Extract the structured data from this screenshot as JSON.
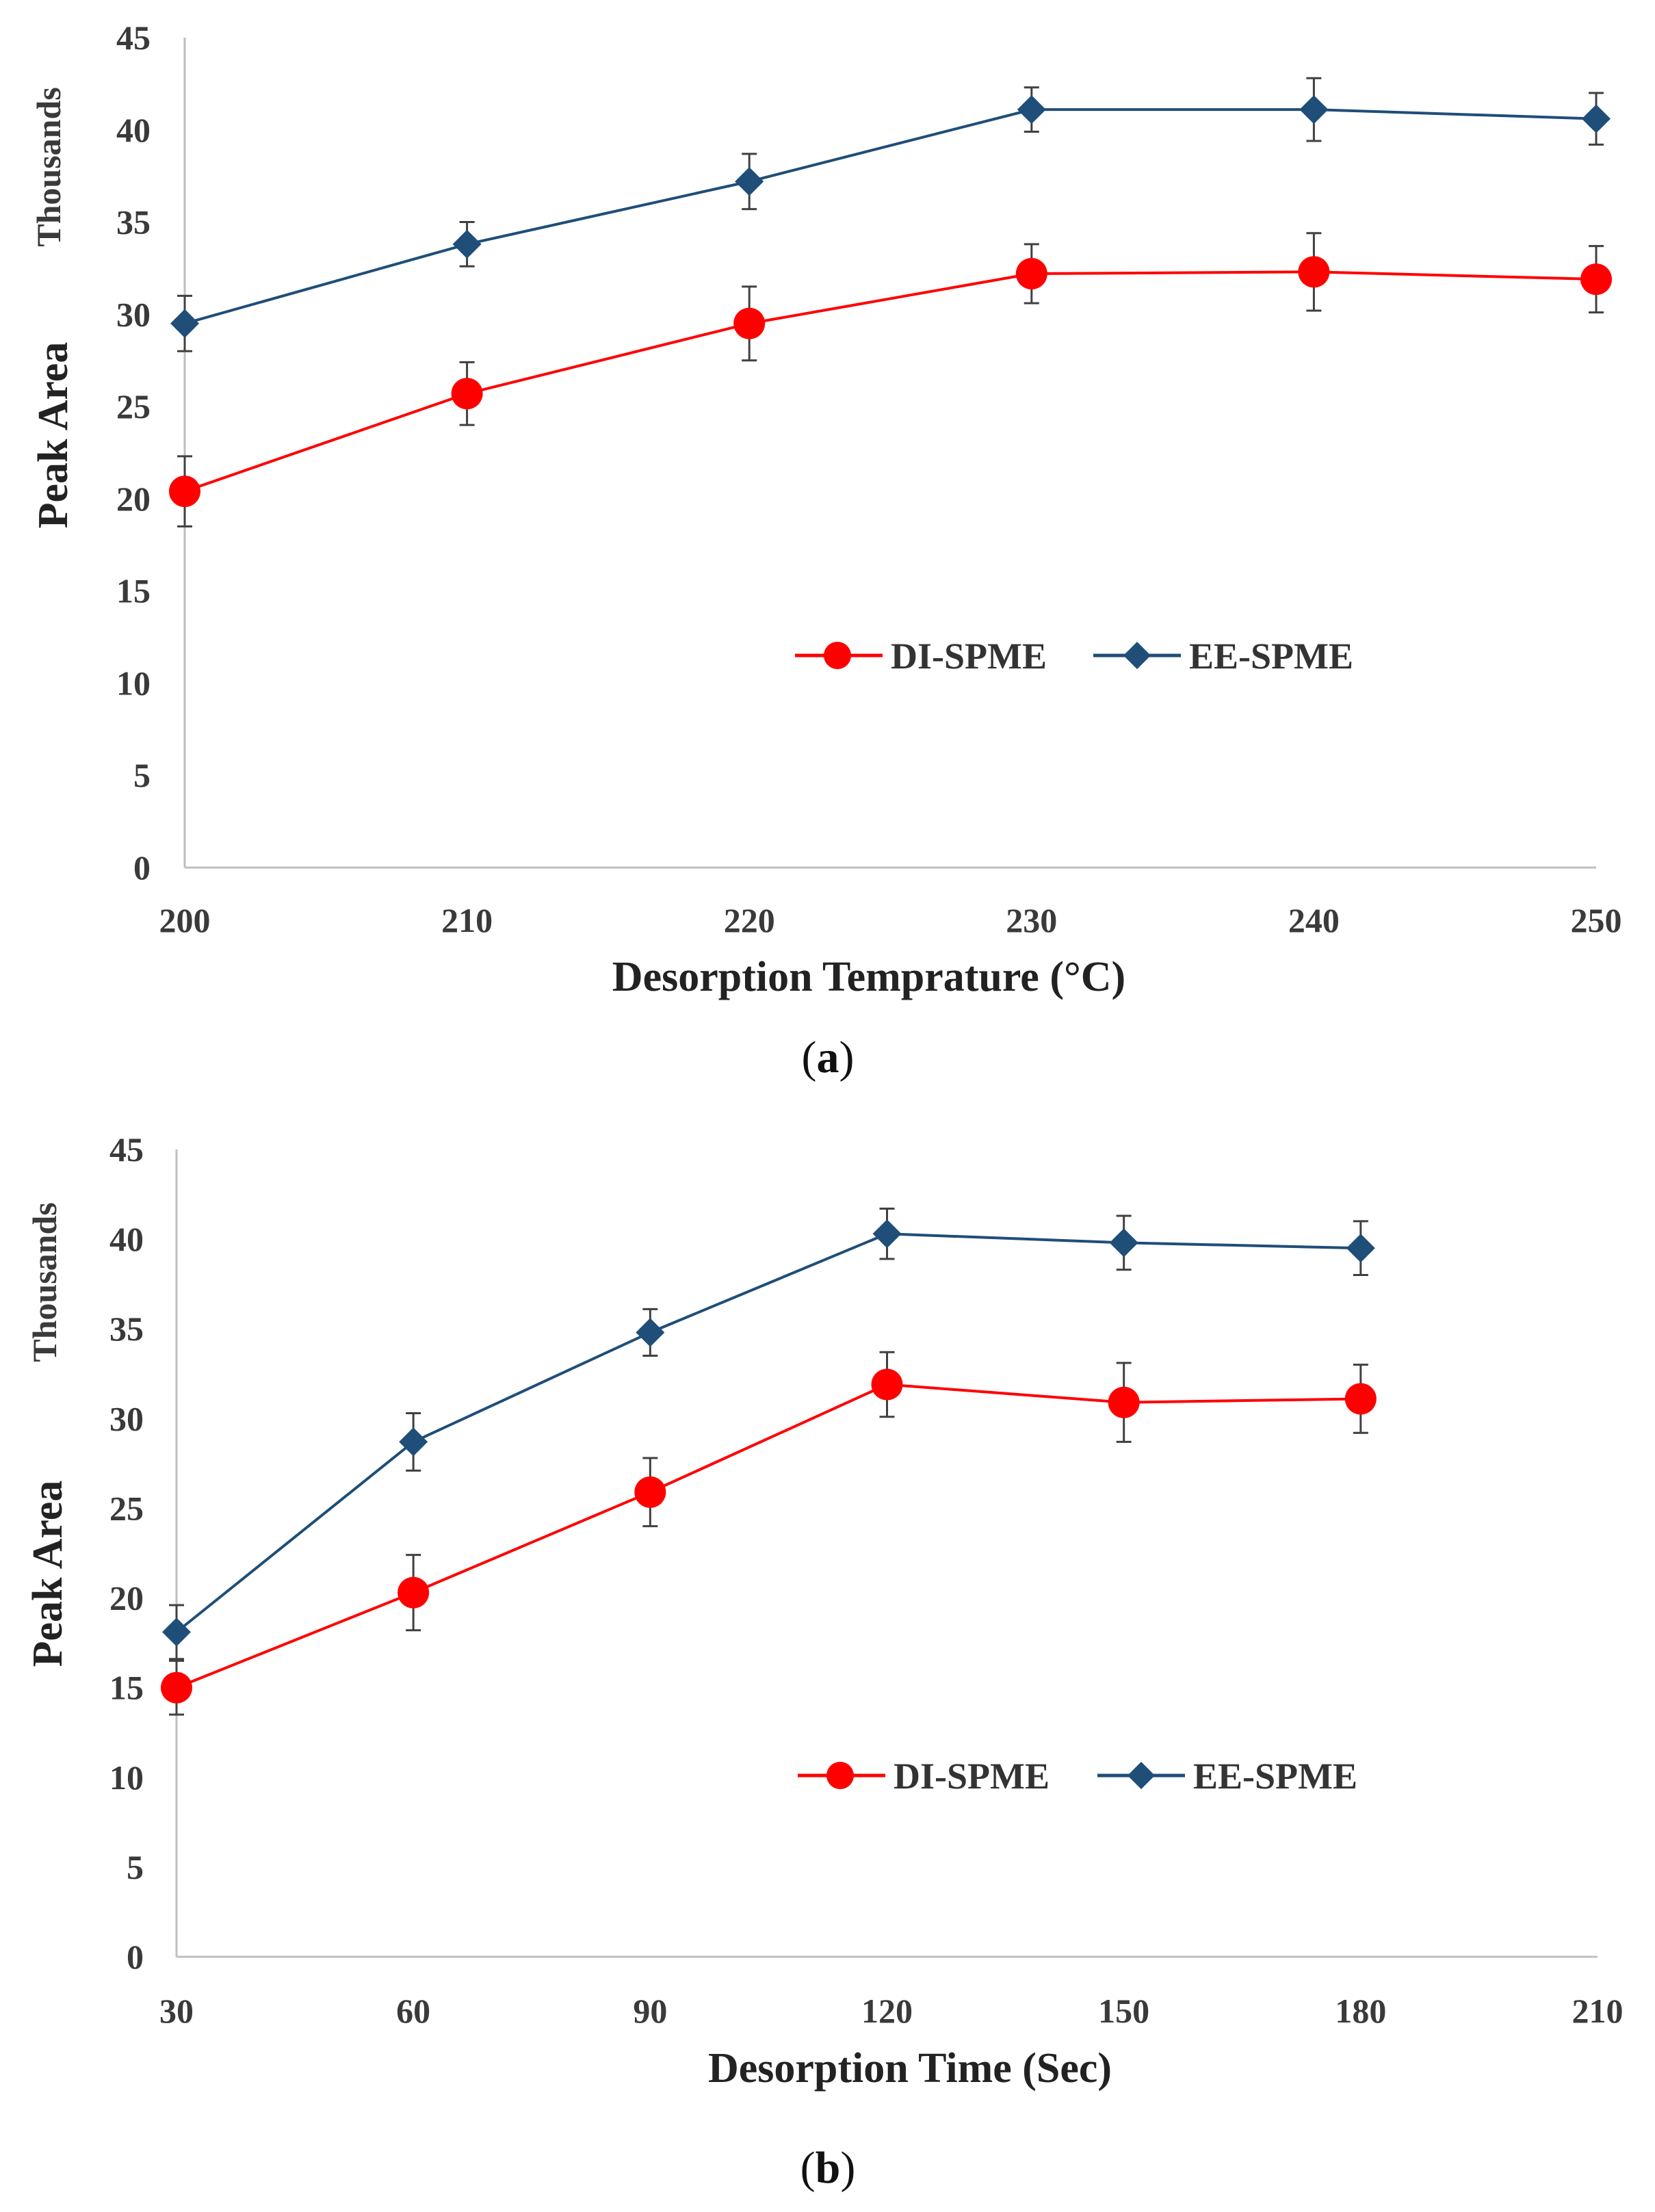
{
  "colors": {
    "di_spme": "#ff0000",
    "ee_spme": "#1f4e79",
    "axis": "#bfbfbf",
    "error_bar": "#404040"
  },
  "chart_data": [
    {
      "type": "line",
      "panel_label": "a",
      "x": [
        200,
        210,
        220,
        230,
        240,
        250
      ],
      "xlim": [
        200,
        250
      ],
      "xticks": [
        200,
        210,
        220,
        230,
        240,
        250
      ],
      "ylim": [
        0,
        45
      ],
      "yticks": [
        0,
        5,
        10,
        15,
        20,
        25,
        30,
        35,
        40,
        45
      ],
      "xlabel": "Desorption Temprature (°C)",
      "ylabel": "Peak Area",
      "y_unit_label": "Thousands",
      "legend_position": "center-right",
      "series": [
        {
          "name": "DI-SPME",
          "marker": "circle",
          "values": [
            20.4,
            25.7,
            29.5,
            32.2,
            32.3,
            31.9
          ],
          "errors": [
            1.9,
            1.7,
            2.0,
            1.6,
            2.1,
            1.8
          ]
        },
        {
          "name": "EE-SPME",
          "marker": "diamond",
          "values": [
            29.5,
            33.8,
            37.2,
            41.1,
            41.1,
            40.6
          ],
          "errors": [
            1.5,
            1.2,
            1.5,
            1.2,
            1.7,
            1.4
          ]
        }
      ]
    },
    {
      "type": "line",
      "panel_label": "b",
      "x": [
        30,
        60,
        90,
        120,
        150,
        180
      ],
      "xlim": [
        30,
        210
      ],
      "xticks": [
        30,
        60,
        90,
        120,
        150,
        180,
        210
      ],
      "ylim": [
        0,
        45
      ],
      "yticks": [
        0,
        5,
        10,
        15,
        20,
        25,
        30,
        35,
        40,
        45
      ],
      "xlabel": "Desorption Time (Sec)",
      "ylabel": "Peak Area",
      "y_unit_label": "Thousands",
      "legend_position": "center-right",
      "series": [
        {
          "name": "DI-SPME",
          "marker": "circle",
          "values": [
            15.0,
            20.3,
            25.9,
            31.9,
            30.9,
            31.1
          ],
          "errors": [
            1.5,
            2.1,
            1.9,
            1.8,
            2.2,
            1.9
          ]
        },
        {
          "name": "EE-SPME",
          "marker": "diamond",
          "values": [
            18.1,
            28.7,
            34.8,
            40.3,
            39.8,
            39.5
          ],
          "errors": [
            1.5,
            1.6,
            1.3,
            1.4,
            1.5,
            1.5
          ]
        }
      ]
    }
  ]
}
